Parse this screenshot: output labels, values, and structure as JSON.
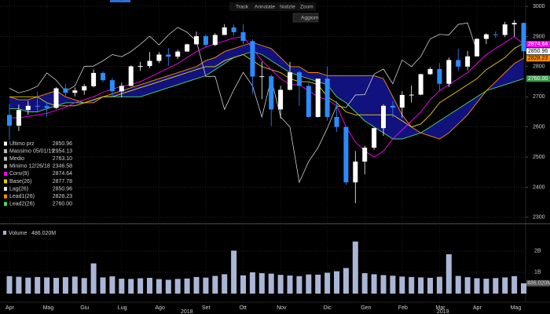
{
  "toolbar": {
    "items": [
      "Track",
      "Annotate",
      "Notizie",
      "Zoom"
    ],
    "button": "Aggiorn"
  },
  "chart_data": {
    "type": "candlestick",
    "categories": [
      "Apr",
      null,
      null,
      null,
      "Mag",
      null,
      null,
      null,
      "Giu",
      null,
      null,
      null,
      "Lug",
      null,
      null,
      null,
      "Ago",
      null,
      null,
      null,
      null,
      "Set",
      null,
      null,
      null,
      "Ott",
      null,
      null,
      null,
      "Nov",
      null,
      null,
      null,
      null,
      "Dic",
      null,
      null,
      null,
      "Gen",
      null,
      null,
      null,
      "Feb",
      null,
      null,
      null,
      "Mar",
      null,
      null,
      null,
      "Apr",
      null,
      null,
      null,
      "Mag",
      null
    ],
    "years": [
      "2018",
      "2019"
    ],
    "open": [
      2640,
      2604,
      2656,
      2670,
      2669,
      2663,
      2728,
      2713,
      2721,
      2735,
      2779,
      2755,
      2718,
      2736,
      2801,
      2802,
      2819,
      2840,
      2833,
      2850,
      2874,
      2901,
      2872,
      2905,
      2930,
      2914,
      2885,
      2767,
      2768,
      2658,
      2723,
      2781,
      2736,
      2633,
      2760,
      2633,
      2600,
      2416,
      2485,
      2531,
      2596,
      2670,
      2664,
      2706,
      2707,
      2775,
      2792,
      2743,
      2822,
      2800,
      2834,
      2892,
      2907,
      2905,
      2940,
      2945
    ],
    "high": [
      2676,
      2674,
      2686,
      2717,
      2682,
      2732,
      2742,
      2731,
      2742,
      2791,
      2784,
      2763,
      2747,
      2804,
      2816,
      2848,
      2848,
      2862,
      2856,
      2876,
      2916,
      2907,
      2911,
      2941,
      2940,
      2940,
      2890,
      2816,
      2774,
      2736,
      2816,
      2786,
      2747,
      2760,
      2800,
      2685,
      2601,
      2520,
      2538,
      2597,
      2675,
      2685,
      2718,
      2737,
      2776,
      2798,
      2812,
      2830,
      2860,
      2852,
      2894,
      2911,
      2917,
      2949,
      2954.13,
      2946
    ],
    "low": [
      2553,
      2586,
      2640,
      2651,
      2634,
      2660,
      2703,
      2701,
      2707,
      2731,
      2748,
      2698,
      2698,
      2735,
      2786,
      2795,
      2812,
      2802,
      2825,
      2852,
      2873,
      2864,
      2868,
      2905,
      2902,
      2874,
      2710,
      2692,
      2603,
      2628,
      2722,
      2670,
      2631,
      2631,
      2621,
      2583,
      2408,
      2346.58,
      2443,
      2524,
      2570,
      2631,
      2631,
      2681,
      2705,
      2773,
      2722,
      2732,
      2785,
      2788,
      2835,
      2875,
      2895,
      2898,
      2900,
      2825
    ],
    "close": [
      2604,
      2656,
      2670,
      2669,
      2663,
      2728,
      2713,
      2721,
      2735,
      2779,
      2755,
      2718,
      2736,
      2801,
      2802,
      2819,
      2840,
      2833,
      2850,
      2874,
      2901,
      2872,
      2905,
      2930,
      2914,
      2885,
      2767,
      2768,
      2658,
      2723,
      2781,
      2736,
      2633,
      2760,
      2633,
      2600,
      2416,
      2485,
      2531,
      2596,
      2670,
      2664,
      2706,
      2707,
      2775,
      2792,
      2743,
      2822,
      2800,
      2834,
      2892,
      2907,
      2905,
      2940,
      2945,
      2850.96
    ],
    "up_color": "#ffffff",
    "down_color": "#2a8cff",
    "cloud_color": "#14148c",
    "stats": [
      {
        "label": "Ultimo prz",
        "value": "2850.96",
        "color": "#ffffff"
      },
      {
        "label": "Massimo 05/01/19",
        "value": "2954.13",
        "color": "#bbbbbb"
      },
      {
        "label": "Medio",
        "value": "2763.10",
        "color": "#bbbbbb"
      },
      {
        "label": "Minimo 12/26/18",
        "value": "2346.58",
        "color": "#bbbbbb"
      }
    ],
    "series": [
      {
        "name": "Conv(9)",
        "color": "#ff00ff",
        "last_label": "2874.64",
        "values": [
          2630,
          2630,
          2635,
          2640,
          2645,
          2655,
          2665,
          2680,
          2690,
          2700,
          2715,
          2725,
          2735,
          2740,
          2750,
          2765,
          2780,
          2795,
          2810,
          2830,
          2850,
          2865,
          2875,
          2885,
          2895,
          2900,
          2860,
          2820,
          2790,
          2760,
          2740,
          2740,
          2720,
          2700,
          2690,
          2670,
          2600,
          2550,
          2520,
          2500,
          2520,
          2560,
          2590,
          2620,
          2650,
          2690,
          2720,
          2740,
          2760,
          2780,
          2810,
          2840,
          2860,
          2880,
          2900,
          2874.64
        ]
      },
      {
        "name": "Base(26)",
        "color": "#e6d200",
        "last_label": "2877.78",
        "values": [
          2700,
          2700,
          2700,
          2700,
          2680,
          2670,
          2670,
          2670,
          2680,
          2690,
          2700,
          2700,
          2710,
          2720,
          2730,
          2740,
          2750,
          2760,
          2770,
          2780,
          2790,
          2800,
          2800,
          2820,
          2830,
          2840,
          2820,
          2800,
          2790,
          2780,
          2760,
          2750,
          2750,
          2740,
          2700,
          2680,
          2650,
          2640,
          2640,
          2640,
          2640,
          2640,
          2620,
          2600,
          2610,
          2640,
          2680,
          2700,
          2720,
          2740,
          2760,
          2790,
          2810,
          2830,
          2860,
          2877.78
        ]
      },
      {
        "name": "Lag(26)",
        "color": "#e8e8e8",
        "last_label": "2850.96",
        "values": [
          2728,
          2713,
          2721,
          2735,
          2779,
          2755,
          2718,
          2736,
          2801,
          2802,
          2819,
          2840,
          2833,
          2850,
          2874,
          2901,
          2872,
          2905,
          2930,
          2914,
          2885,
          2767,
          2768,
          2658,
          2723,
          2781,
          2736,
          2633,
          2760,
          2633,
          2600,
          2416,
          2485,
          2531,
          2596,
          2670,
          2664,
          2706,
          2707,
          2775,
          2792,
          2743,
          2822,
          2800,
          2834,
          2892,
          2907,
          2905,
          2940,
          2945,
          2850.96,
          null,
          null,
          null,
          null,
          null
        ]
      },
      {
        "name": "Lead1(26)",
        "color": "#ff8c00",
        "last_label": "2828.23",
        "values": [
          2700,
          2690,
          2690,
          2700,
          2710,
          2720,
          2700,
          2690,
          2680,
          2680,
          2700,
          2710,
          2720,
          2730,
          2740,
          2750,
          2760,
          2770,
          2780,
          2790,
          2800,
          2820,
          2830,
          2850,
          2860,
          2870,
          2880,
          2870,
          2860,
          2830,
          2800,
          2800,
          2780,
          2780,
          2770,
          2770,
          2770,
          2770,
          2770,
          2770,
          2760,
          2700,
          2640,
          2600,
          2580,
          2570,
          2560,
          2580,
          2610,
          2640,
          2680,
          2720,
          2750,
          2780,
          2810,
          2828.23
        ]
      },
      {
        "name": "Lead2(26)",
        "color": "#4cd964",
        "last_label": "2760.00",
        "values": [
          2660,
          2660,
          2650,
          2650,
          2660,
          2670,
          2680,
          2680,
          2680,
          2690,
          2700,
          2700,
          2700,
          2700,
          2700,
          2710,
          2720,
          2730,
          2740,
          2750,
          2760,
          2770,
          2790,
          2810,
          2830,
          2840,
          2850,
          2840,
          2820,
          2800,
          2780,
          2770,
          2760,
          2750,
          2740,
          2700,
          2680,
          2650,
          2620,
          2600,
          2580,
          2560,
          2560,
          2570,
          2580,
          2600,
          2620,
          2640,
          2660,
          2680,
          2700,
          2720,
          2730,
          2740,
          2750,
          2760
        ]
      }
    ],
    "ylim": [
      2284,
      3021
    ],
    "yticks": [
      2300,
      2400,
      2500,
      2600,
      2700,
      2800,
      2900,
      3000
    ],
    "grid": true,
    "volume": {
      "name": "Volume",
      "last_label": "486.020M",
      "color": "#a9b6d6",
      "values": [
        820000000.0,
        790000000.0,
        750000000.0,
        780000000.0,
        760000000.0,
        740000000.0,
        770000000.0,
        800000000.0,
        730000000.0,
        1420000000.0,
        760000000.0,
        810000000.0,
        700000000.0,
        690000000.0,
        720000000.0,
        740000000.0,
        680000000.0,
        650000000.0,
        690000000.0,
        710000000.0,
        780000000.0,
        750000000.0,
        830000000.0,
        910000000.0,
        2020000000.0,
        860000000.0,
        1000000000.0,
        960000000.0,
        940000000.0,
        880000000.0,
        850000000.0,
        820000000.0,
        900000000.0,
        890000000.0,
        980000000.0,
        1050000000.0,
        1200000000.0,
        2450000000.0,
        960000000.0,
        910000000.0,
        870000000.0,
        840000000.0,
        800000000.0,
        780000000.0,
        760000000.0,
        740000000.0,
        790000000.0,
        1850000000.0,
        830000000.0,
        770000000.0,
        720000000.0,
        700000000.0,
        730000000.0,
        760000000.0,
        820000000.0,
        486020000.0
      ],
      "ylim": [
        0,
        3100000000
      ],
      "yticks": [
        {
          "value": 1000000000,
          "label": "1B"
        },
        {
          "value": 2000000000,
          "label": "2B"
        }
      ]
    }
  }
}
